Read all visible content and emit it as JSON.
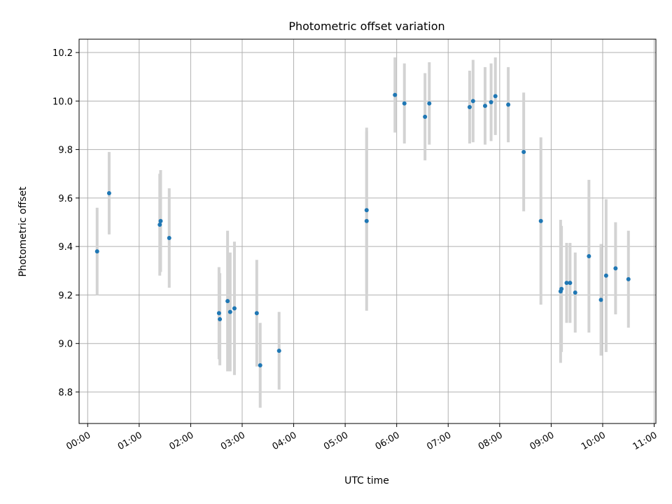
{
  "chart_data": {
    "type": "scatter",
    "title": "Photometric offset variation",
    "xlabel": "UTC time",
    "ylabel": "Photometric offset",
    "x_axis_type": "time",
    "xlim": [
      "23:50",
      "11:02"
    ],
    "ylim": [
      8.67,
      10.255
    ],
    "x_ticks": [
      "00:00",
      "01:00",
      "02:00",
      "03:00",
      "04:00",
      "05:00",
      "06:00",
      "07:00",
      "08:00",
      "09:00",
      "10:00",
      "11:00"
    ],
    "y_ticks": [
      "8.8",
      "9.0",
      "9.2",
      "9.4",
      "9.6",
      "9.8",
      "10.0",
      "10.2"
    ],
    "grid": true,
    "legend": false,
    "colors": {
      "point": "#1f77b4",
      "error_bar": "#d3d3d3",
      "grid": "#b0b0b0"
    },
    "points": [
      {
        "x": "00:11",
        "y": 9.38,
        "err": 0.18
      },
      {
        "x": "00:25",
        "y": 9.62,
        "err": 0.17
      },
      {
        "x": "01:24",
        "y": 9.49,
        "err": 0.21
      },
      {
        "x": "01:25",
        "y": 9.505,
        "err": 0.21
      },
      {
        "x": "01:35",
        "y": 9.435,
        "err": 0.205
      },
      {
        "x": "02:33",
        "y": 9.125,
        "err": 0.19
      },
      {
        "x": "02:34",
        "y": 9.1,
        "err": 0.19
      },
      {
        "x": "02:43",
        "y": 9.175,
        "err": 0.29
      },
      {
        "x": "02:46",
        "y": 9.13,
        "err": 0.245
      },
      {
        "x": "02:51",
        "y": 9.145,
        "err": 0.275
      },
      {
        "x": "03:17",
        "y": 9.125,
        "err": 0.22
      },
      {
        "x": "03:21",
        "y": 8.91,
        "err": 0.175
      },
      {
        "x": "03:43",
        "y": 8.97,
        "err": 0.16
      },
      {
        "x": "05:25",
        "y": 9.505,
        "err": 0.37
      },
      {
        "x": "05:25",
        "y": 9.55,
        "err": 0.34
      },
      {
        "x": "05:58",
        "y": 10.025,
        "err": 0.155
      },
      {
        "x": "06:09",
        "y": 9.99,
        "err": 0.165
      },
      {
        "x": "06:33",
        "y": 9.935,
        "err": 0.18
      },
      {
        "x": "06:38",
        "y": 9.99,
        "err": 0.17
      },
      {
        "x": "07:25",
        "y": 9.975,
        "err": 0.15
      },
      {
        "x": "07:29",
        "y": 10.0,
        "err": 0.17
      },
      {
        "x": "07:43",
        "y": 9.98,
        "err": 0.16
      },
      {
        "x": "07:50",
        "y": 9.995,
        "err": 0.16
      },
      {
        "x": "07:55",
        "y": 10.02,
        "err": 0.16
      },
      {
        "x": "08:10",
        "y": 9.985,
        "err": 0.155
      },
      {
        "x": "08:28",
        "y": 9.79,
        "err": 0.245
      },
      {
        "x": "08:48",
        "y": 9.505,
        "err": 0.345
      },
      {
        "x": "09:11",
        "y": 9.215,
        "err": 0.295
      },
      {
        "x": "09:12",
        "y": 9.225,
        "err": 0.26
      },
      {
        "x": "09:18",
        "y": 9.25,
        "err": 0.165
      },
      {
        "x": "09:22",
        "y": 9.25,
        "err": 0.165
      },
      {
        "x": "09:28",
        "y": 9.21,
        "err": 0.165
      },
      {
        "x": "09:44",
        "y": 9.36,
        "err": 0.315
      },
      {
        "x": "09:58",
        "y": 9.18,
        "err": 0.23
      },
      {
        "x": "10:04",
        "y": 9.28,
        "err": 0.315
      },
      {
        "x": "10:15",
        "y": 9.31,
        "err": 0.19
      },
      {
        "x": "10:30",
        "y": 9.265,
        "err": 0.2
      }
    ]
  }
}
